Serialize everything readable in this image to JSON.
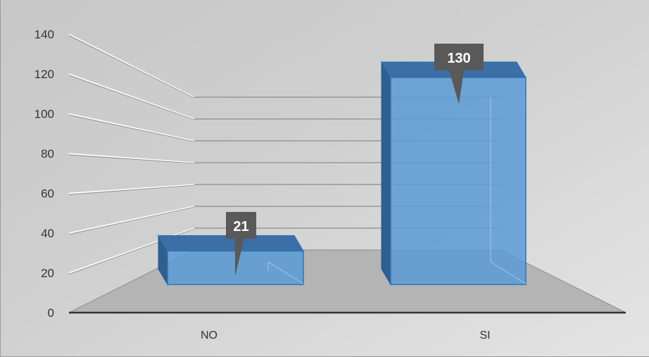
{
  "chart_data": {
    "type": "bar",
    "categories": [
      "NO",
      "SI"
    ],
    "values": [
      21,
      130
    ],
    "ylim": [
      0,
      140
    ],
    "yticks": [
      "0",
      "20",
      "40",
      "60",
      "80",
      "100",
      "120",
      "140"
    ],
    "data_labels": [
      "21",
      "130"
    ],
    "grid": true,
    "legend": "none",
    "bar_color": "#5b9bd5"
  }
}
